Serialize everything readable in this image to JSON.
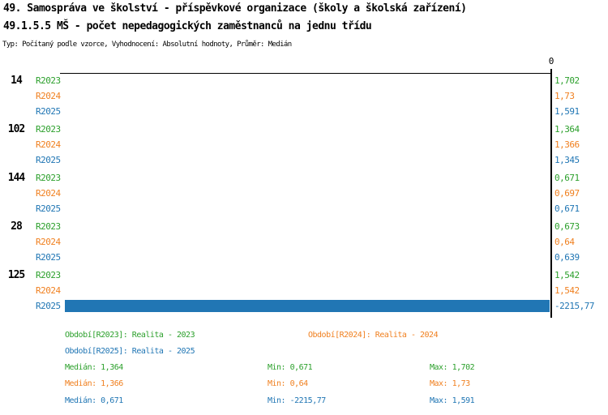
{
  "header": {
    "title_line1": "49. Samospráva ve školství - příspěvkové organizace (školy a školská zařízení)",
    "title_line2": "49.1.5.5 MŠ - počet nepedagogických zaměstnanců na jednu třídu",
    "subtitle": "Typ: Počítaný podle vzorce, Vyhodnocení: Absolutní hodnoty, Průměr: Medián"
  },
  "colors": {
    "R2023": "#2CA02C",
    "R2024": "#F08020",
    "R2025": "#2076B4",
    "bar": "#2176B4",
    "axis": "#000000"
  },
  "chart_data": {
    "type": "bar",
    "orientation": "horizontal",
    "zero_label": "0",
    "xlim": [
      -2215.77,
      0
    ],
    "grid": false,
    "series": [
      "R2023",
      "R2024",
      "R2025"
    ],
    "groups": [
      {
        "category": "14",
        "values": [
          1.702,
          1.73,
          1.591
        ],
        "value_labels": [
          "1,702",
          "1,73",
          "1,591"
        ]
      },
      {
        "category": "102",
        "values": [
          1.364,
          1.366,
          1.345
        ],
        "value_labels": [
          "1,364",
          "1,366",
          "1,345"
        ]
      },
      {
        "category": "144",
        "values": [
          0.671,
          0.697,
          0.671
        ],
        "value_labels": [
          "0,671",
          "0,697",
          "0,671"
        ]
      },
      {
        "category": "28",
        "values": [
          0.673,
          0.64,
          0.639
        ],
        "value_labels": [
          "0,673",
          "0,64",
          "0,639"
        ]
      },
      {
        "category": "125",
        "values": [
          1.542,
          1.542,
          -2215.77
        ],
        "value_labels": [
          "1,542",
          "1,542",
          "-2215,77"
        ]
      }
    ]
  },
  "legend": {
    "periods": [
      {
        "series": "R2023",
        "text": "Období[R2023]: Realita - 2023"
      },
      {
        "series": "R2024",
        "text": "Období[R2024]: Realita - 2024"
      },
      {
        "series": "R2025",
        "text": "Období[R2025]: Realita - 2025"
      }
    ],
    "stats": [
      {
        "series": "R2023",
        "median": "Medián: 1,364",
        "min": "Min: 0,671",
        "max": "Max: 1,702"
      },
      {
        "series": "R2024",
        "median": "Medián: 1,366",
        "min": "Min: 0,64",
        "max": "Max: 1,73"
      },
      {
        "series": "R2025",
        "median": "Medián: 0,671",
        "min": "Min: -2215,77",
        "max": "Max: 1,591"
      }
    ]
  }
}
